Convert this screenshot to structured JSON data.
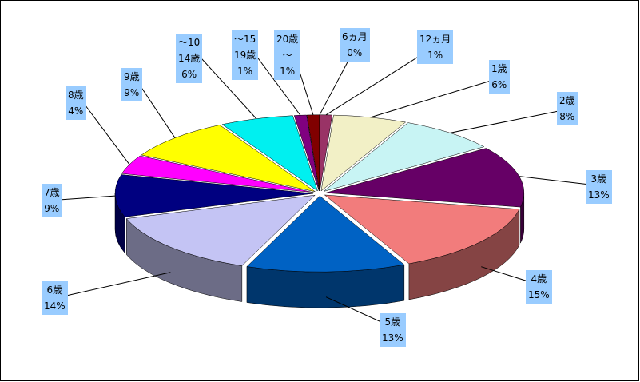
{
  "chart_data": {
    "type": "pie3d",
    "categories": [
      "6ヵ月",
      "12ヵ月",
      "1歳",
      "2歳",
      "3歳",
      "4歳",
      "5歳",
      "6歳",
      "7歳",
      "8歳",
      "9歳",
      "～10\n14歳",
      "～15\n19歳",
      "20歳\n～"
    ],
    "values": [
      0,
      1,
      6,
      8,
      13,
      15,
      13,
      14,
      9,
      4,
      9,
      6,
      1,
      1
    ],
    "value_labels": [
      "0%",
      "1%",
      "6%",
      "8%",
      "13%",
      "15%",
      "13%",
      "14%",
      "9%",
      "4%",
      "9%",
      "6%",
      "1%",
      "1%"
    ],
    "colors": [
      "#800000",
      "#993366",
      "#f2f0c6",
      "#c8f4f4",
      "#660066",
      "#f27c7c",
      "#0062c4",
      "#c4c4f4",
      "#000080",
      "#ff00ff",
      "#ffff00",
      "#00f0f0",
      "#800080",
      "#800000"
    ]
  }
}
